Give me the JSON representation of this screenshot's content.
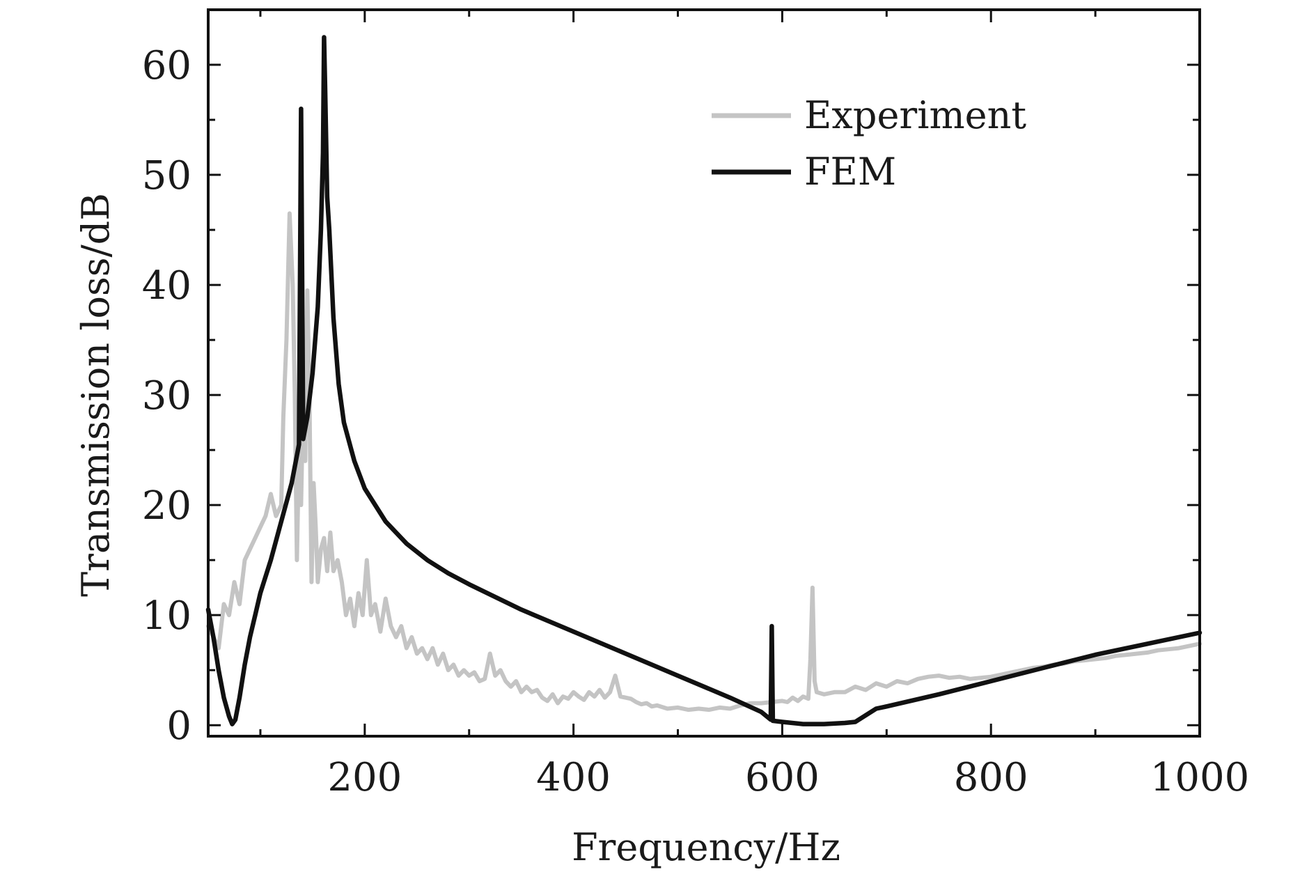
{
  "chart_data": {
    "type": "line",
    "title": "",
    "xlabel": "Frequency/Hz",
    "ylabel": "Transmission loss/dB",
    "xlim": [
      50,
      1000
    ],
    "ylim": [
      -1,
      65
    ],
    "xticks": [
      200,
      400,
      600,
      800,
      1000
    ],
    "xminor": [
      100,
      300,
      500,
      700,
      900
    ],
    "yticks": [
      0,
      10,
      20,
      30,
      40,
      50,
      60
    ],
    "yminor": [
      5,
      15,
      25,
      35,
      45,
      55
    ],
    "grid": false,
    "legend_position": "top-right",
    "series": [
      {
        "name": "Experiment",
        "color": "#c4c4c4",
        "points": [
          [
            50,
            9
          ],
          [
            60,
            7
          ],
          [
            65,
            11
          ],
          [
            70,
            10
          ],
          [
            75,
            13
          ],
          [
            80,
            11
          ],
          [
            85,
            15
          ],
          [
            90,
            16
          ],
          [
            95,
            17
          ],
          [
            100,
            18
          ],
          [
            105,
            19
          ],
          [
            110,
            21
          ],
          [
            115,
            19
          ],
          [
            120,
            20
          ],
          [
            122,
            28
          ],
          [
            125,
            35
          ],
          [
            128,
            46.5
          ],
          [
            131,
            40
          ],
          [
            133,
            30
          ],
          [
            135,
            15
          ],
          [
            137,
            25
          ],
          [
            139,
            20
          ],
          [
            141,
            30
          ],
          [
            143,
            24
          ],
          [
            145,
            39.5
          ],
          [
            147,
            30
          ],
          [
            149,
            13
          ],
          [
            151,
            22
          ],
          [
            153,
            18
          ],
          [
            155,
            13
          ],
          [
            158,
            16
          ],
          [
            161,
            17
          ],
          [
            164,
            14
          ],
          [
            167,
            17.5
          ],
          [
            170,
            14
          ],
          [
            174,
            15
          ],
          [
            178,
            13
          ],
          [
            182,
            10
          ],
          [
            186,
            11.5
          ],
          [
            190,
            9
          ],
          [
            194,
            12
          ],
          [
            198,
            10
          ],
          [
            202,
            15
          ],
          [
            206,
            10
          ],
          [
            210,
            11
          ],
          [
            215,
            8.5
          ],
          [
            220,
            11.5
          ],
          [
            225,
            9
          ],
          [
            230,
            8
          ],
          [
            235,
            9
          ],
          [
            240,
            7
          ],
          [
            245,
            8
          ],
          [
            250,
            6.5
          ],
          [
            255,
            7
          ],
          [
            260,
            6
          ],
          [
            265,
            7
          ],
          [
            270,
            5.5
          ],
          [
            275,
            6.5
          ],
          [
            280,
            5
          ],
          [
            285,
            5.5
          ],
          [
            290,
            4.5
          ],
          [
            295,
            5
          ],
          [
            300,
            4.5
          ],
          [
            305,
            4.8
          ],
          [
            310,
            4
          ],
          [
            315,
            4.2
          ],
          [
            320,
            6.5
          ],
          [
            325,
            4.5
          ],
          [
            330,
            5
          ],
          [
            335,
            4
          ],
          [
            340,
            3.5
          ],
          [
            345,
            4
          ],
          [
            350,
            3
          ],
          [
            355,
            3.5
          ],
          [
            360,
            3
          ],
          [
            365,
            3.2
          ],
          [
            370,
            2.5
          ],
          [
            375,
            2.2
          ],
          [
            380,
            2.8
          ],
          [
            385,
            2
          ],
          [
            390,
            2.6
          ],
          [
            395,
            2.4
          ],
          [
            400,
            3
          ],
          [
            405,
            2.6
          ],
          [
            410,
            2.3
          ],
          [
            415,
            3
          ],
          [
            420,
            2.6
          ],
          [
            425,
            3.2
          ],
          [
            430,
            2.5
          ],
          [
            435,
            3
          ],
          [
            440,
            4.5
          ],
          [
            445,
            2.6
          ],
          [
            450,
            2.5
          ],
          [
            455,
            2.4
          ],
          [
            460,
            2.1
          ],
          [
            465,
            1.9
          ],
          [
            470,
            2
          ],
          [
            475,
            1.7
          ],
          [
            480,
            1.8
          ],
          [
            490,
            1.5
          ],
          [
            500,
            1.6
          ],
          [
            510,
            1.4
          ],
          [
            520,
            1.5
          ],
          [
            530,
            1.4
          ],
          [
            540,
            1.6
          ],
          [
            550,
            1.5
          ],
          [
            560,
            1.8
          ],
          [
            570,
            2
          ],
          [
            580,
            2
          ],
          [
            590,
            2.1
          ],
          [
            600,
            2.2
          ],
          [
            605,
            2.1
          ],
          [
            610,
            2.5
          ],
          [
            615,
            2.2
          ],
          [
            620,
            2.6
          ],
          [
            625,
            2.4
          ],
          [
            627,
            6
          ],
          [
            629,
            12.5
          ],
          [
            631,
            4
          ],
          [
            633,
            3
          ],
          [
            640,
            2.8
          ],
          [
            650,
            3
          ],
          [
            660,
            3
          ],
          [
            670,
            3.5
          ],
          [
            680,
            3.2
          ],
          [
            690,
            3.8
          ],
          [
            700,
            3.5
          ],
          [
            710,
            4
          ],
          [
            720,
            3.8
          ],
          [
            730,
            4.2
          ],
          [
            740,
            4.4
          ],
          [
            750,
            4.5
          ],
          [
            760,
            4.3
          ],
          [
            770,
            4.4
          ],
          [
            780,
            4.2
          ],
          [
            790,
            4.3
          ],
          [
            800,
            4.4
          ],
          [
            810,
            4.6
          ],
          [
            820,
            4.8
          ],
          [
            830,
            5
          ],
          [
            840,
            5.2
          ],
          [
            850,
            5.3
          ],
          [
            860,
            5.5
          ],
          [
            870,
            5.6
          ],
          [
            880,
            5.8
          ],
          [
            890,
            5.9
          ],
          [
            900,
            6
          ],
          [
            910,
            6.1
          ],
          [
            920,
            6.3
          ],
          [
            930,
            6.4
          ],
          [
            940,
            6.5
          ],
          [
            950,
            6.6
          ],
          [
            960,
            6.8
          ],
          [
            970,
            6.9
          ],
          [
            980,
            7
          ],
          [
            990,
            7.2
          ],
          [
            1000,
            7.4
          ]
        ]
      },
      {
        "name": "FEM",
        "color": "#111111",
        "points": [
          [
            50,
            10.5
          ],
          [
            55,
            8
          ],
          [
            60,
            5
          ],
          [
            65,
            2.5
          ],
          [
            70,
            0.8
          ],
          [
            73,
            0.1
          ],
          [
            76,
            0.5
          ],
          [
            80,
            2.5
          ],
          [
            85,
            5.5
          ],
          [
            90,
            8
          ],
          [
            95,
            10
          ],
          [
            100,
            12
          ],
          [
            110,
            15
          ],
          [
            120,
            18.5
          ],
          [
            130,
            22
          ],
          [
            137,
            25.5
          ],
          [
            139,
            56
          ],
          [
            141,
            26
          ],
          [
            145,
            28
          ],
          [
            150,
            32
          ],
          [
            155,
            38
          ],
          [
            158,
            45
          ],
          [
            160,
            52
          ],
          [
            161,
            62.5
          ],
          [
            162,
            58
          ],
          [
            164,
            48
          ],
          [
            166,
            45
          ],
          [
            170,
            37
          ],
          [
            175,
            31
          ],
          [
            180,
            27.5
          ],
          [
            190,
            24
          ],
          [
            200,
            21.5
          ],
          [
            220,
            18.5
          ],
          [
            240,
            16.5
          ],
          [
            260,
            15
          ],
          [
            280,
            13.8
          ],
          [
            300,
            12.8
          ],
          [
            350,
            10.5
          ],
          [
            400,
            8.5
          ],
          [
            450,
            6.5
          ],
          [
            500,
            4.5
          ],
          [
            550,
            2.5
          ],
          [
            580,
            1.2
          ],
          [
            589,
            0.5
          ],
          [
            590,
            9
          ],
          [
            591,
            0.4
          ],
          [
            600,
            0.3
          ],
          [
            620,
            0.1
          ],
          [
            640,
            0.1
          ],
          [
            660,
            0.2
          ],
          [
            670,
            0.3
          ],
          [
            680,
            0.9
          ],
          [
            690,
            1.5
          ],
          [
            700,
            1.7
          ],
          [
            750,
            2.8
          ],
          [
            800,
            4
          ],
          [
            850,
            5.2
          ],
          [
            900,
            6.4
          ],
          [
            950,
            7.4
          ],
          [
            1000,
            8.4
          ]
        ]
      }
    ]
  }
}
